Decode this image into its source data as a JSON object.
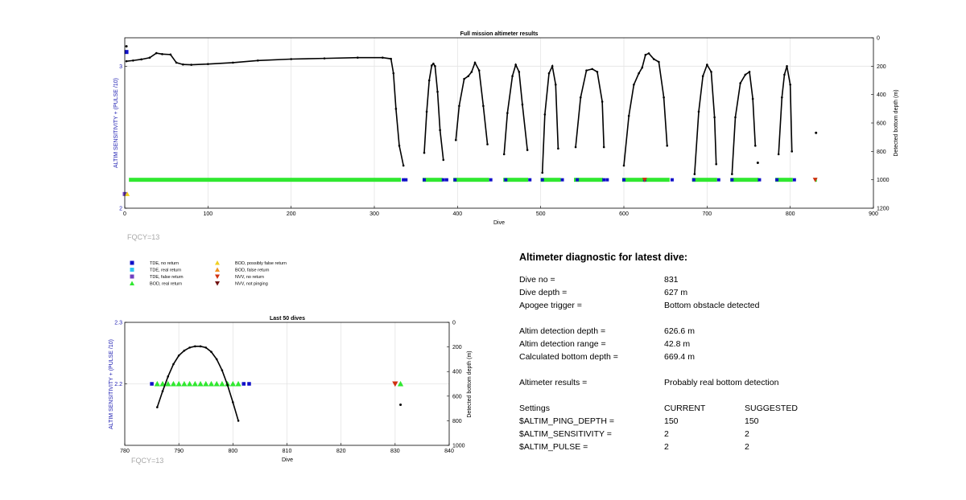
{
  "chart_data": [
    {
      "type": "scatter",
      "title": "Full mission altimeter results",
      "xlabel": "Dive",
      "ylabel_left": "ALTIM SENSITIVITY + (PULSE /10)",
      "ylabel_right": "Detected bottom depth (m)",
      "xlim": [
        0,
        900
      ],
      "ylim_left": [
        2,
        3.2
      ],
      "ylim_right": [
        1200,
        0
      ],
      "xticks": [
        0,
        100,
        200,
        300,
        400,
        500,
        600,
        700,
        800,
        900
      ],
      "yticks_left": [
        2,
        3
      ],
      "yticks_right": [
        0,
        200,
        400,
        600,
        800,
        1000,
        1200
      ],
      "grid": true,
      "annotation": "FQCY=13",
      "bottom_depth_segments": [
        {
          "x": [
            2,
            10,
            20,
            30,
            38,
            45,
            55,
            62,
            70,
            80,
            100,
            130,
            160,
            200,
            240,
            280,
            310,
            320,
            323,
            326,
            330,
            335
          ],
          "y": [
            165,
            160,
            152,
            140,
            108,
            115,
            118,
            175,
            188,
            190,
            185,
            175,
            160,
            150,
            145,
            140,
            140,
            148,
            250,
            500,
            760,
            900
          ]
        },
        {
          "x": [
            360,
            363,
            366,
            369,
            371,
            373,
            376,
            379,
            383
          ],
          "y": [
            810,
            520,
            300,
            195,
            182,
            200,
            380,
            650,
            860
          ]
        },
        {
          "x": [
            398,
            402,
            408,
            413,
            417,
            421,
            426,
            431,
            436
          ],
          "y": [
            720,
            480,
            290,
            270,
            240,
            175,
            230,
            480,
            750
          ]
        },
        {
          "x": [
            456,
            460,
            466,
            470,
            474,
            478,
            484
          ],
          "y": [
            820,
            530,
            270,
            190,
            240,
            470,
            790
          ]
        },
        {
          "x": [
            502,
            505,
            510,
            514,
            518,
            521
          ],
          "y": [
            950,
            540,
            250,
            200,
            330,
            780
          ]
        },
        {
          "x": [
            542,
            548,
            555,
            562,
            568,
            574,
            576
          ],
          "y": [
            770,
            420,
            230,
            220,
            240,
            450,
            770
          ]
        },
        {
          "x": [
            600,
            606,
            612,
            618,
            622,
            626,
            630,
            636,
            642,
            648,
            652
          ],
          "y": [
            900,
            550,
            330,
            250,
            210,
            120,
            110,
            150,
            170,
            420,
            760
          ]
        },
        {
          "x": [
            685,
            690,
            695,
            700,
            705,
            709,
            711
          ],
          "y": [
            960,
            520,
            270,
            190,
            240,
            560,
            890
          ]
        },
        {
          "x": [
            730,
            734,
            740,
            746,
            751,
            755,
            758
          ],
          "y": [
            960,
            560,
            320,
            260,
            240,
            430,
            760
          ]
        },
        {
          "x": [
            786,
            790,
            793,
            796,
            800,
            802
          ],
          "y": [
            820,
            420,
            260,
            200,
            330,
            800
          ]
        }
      ],
      "bottom_depth_isolated": [
        {
          "x": 2,
          "y": 60
        },
        {
          "x": 761,
          "y": 880
        },
        {
          "x": 831,
          "y": 669
        }
      ],
      "status_segments": [
        {
          "label": "BOD, real return",
          "x_range": [
            5,
            332
          ]
        },
        {
          "label": "BOD, real return",
          "x_range": [
            358,
            382
          ]
        },
        {
          "label": "BOD, real return",
          "x_range": [
            395,
            438
          ]
        },
        {
          "label": "BOD, real return",
          "x_range": [
            455,
            485
          ]
        },
        {
          "label": "BOD, real return",
          "x_range": [
            500,
            524
          ]
        },
        {
          "label": "BOD, real return",
          "x_range": [
            540,
            575
          ]
        },
        {
          "label": "BOD, real return",
          "x_range": [
            598,
            655
          ]
        },
        {
          "label": "BOD, real return",
          "x_range": [
            682,
            712
          ]
        },
        {
          "label": "BOD, real return",
          "x_range": [
            728,
            762
          ]
        },
        {
          "label": "BOD, real return",
          "x_range": [
            782,
            803
          ]
        },
        {
          "label": "BOD, real return",
          "x_range": [
            830,
            832
          ]
        }
      ],
      "status_value": 2.2,
      "status_no_return_dives": [
        335,
        338,
        360,
        383,
        387,
        397,
        440,
        458,
        487,
        502,
        526,
        544,
        576,
        580,
        600,
        625,
        658,
        684,
        714,
        730,
        763,
        784,
        805
      ],
      "status_other": [
        {
          "label": "TDE, no return",
          "x": 2,
          "value": 3.1
        },
        {
          "label": "TDE, false return",
          "x": 0,
          "value": 2.1
        },
        {
          "label": "BOD, possibly false return",
          "x": 3,
          "value": 2.1
        },
        {
          "label": "NVV, no return",
          "x": 625,
          "value": 2.2
        },
        {
          "label": "NVV, no return",
          "x": 830,
          "value": 2.2
        }
      ]
    },
    {
      "type": "scatter",
      "title": "Last 50 dives",
      "xlabel": "Dive",
      "ylabel_left": "ALTIM SENSITIVITY + (PULSE /10)",
      "ylabel_right": "Detected bottom depth (m)",
      "xlim": [
        780,
        840
      ],
      "ylim_left": [
        2.1,
        2.3
      ],
      "ylim_right": [
        1000,
        0
      ],
      "xticks": [
        780,
        790,
        800,
        810,
        820,
        830,
        840
      ],
      "yticks_left": [
        2.2,
        2.3
      ],
      "yticks_right": [
        0,
        200,
        400,
        600,
        800,
        1000
      ],
      "grid": true,
      "annotation": "FQCY=13",
      "bottom_depth_curve": {
        "x": [
          786,
          787,
          788,
          789,
          790,
          791,
          792,
          793,
          794,
          795,
          796,
          797,
          798,
          799,
          800,
          801
        ],
        "y": [
          690,
          560,
          440,
          340,
          270,
          230,
          205,
          195,
          195,
          205,
          240,
          300,
          390,
          510,
          650,
          800
        ]
      },
      "bottom_depth_isolated": [
        {
          "x": 831,
          "y": 670
        }
      ],
      "bod_real_return_dives": [
        786,
        787,
        788,
        789,
        790,
        791,
        792,
        793,
        794,
        795,
        796,
        797,
        798,
        799,
        800,
        801,
        831
      ],
      "tde_no_return_dives": [
        785,
        802,
        803
      ],
      "nvv_no_return_dives": [
        830
      ],
      "status_value": 2.2
    }
  ],
  "legend": [
    {
      "label": "TDE, no return",
      "marker": "square",
      "color": "#1010c8"
    },
    {
      "label": "TDE, real return",
      "marker": "square",
      "color": "#30c8f0"
    },
    {
      "label": "TDE, false return",
      "marker": "square",
      "color": "#7040c0"
    },
    {
      "label": "BOD, real return",
      "marker": "triangle-up",
      "color": "#30e830"
    },
    {
      "label": "BOD, possibly false return",
      "marker": "triangle-up",
      "color": "#f0d020"
    },
    {
      "label": "BOD, false return",
      "marker": "triangle-up",
      "color": "#f09020"
    },
    {
      "label": "NVV, no return",
      "marker": "triangle-down",
      "color": "#d03010"
    },
    {
      "label": "NVV, not pinging",
      "marker": "triangle-down",
      "color": "#701010"
    }
  ],
  "diagnostic": {
    "title": "Altimeter diagnostic for latest dive:",
    "dive_no_label": "Dive no =",
    "dive_no": "831",
    "dive_depth_label": "Dive depth =",
    "dive_depth": "627 m",
    "apogee_label": "Apogee trigger =",
    "apogee": "Bottom obstacle detected",
    "det_depth_label": "Altim detection depth =",
    "det_depth": "626.6 m",
    "det_range_label": "Altim detection range =",
    "det_range": "42.8 m",
    "calc_bottom_label": "Calculated bottom depth =",
    "calc_bottom": "669.4 m",
    "results_label": "Altimeter results =",
    "results": "Probably real bottom detection",
    "settings_label": "Settings",
    "current_label": "CURRENT",
    "suggested_label": "SUGGESTED",
    "settings": [
      {
        "name": "$ALTIM_PING_DEPTH =",
        "current": "150",
        "suggested": "150"
      },
      {
        "name": "$ALTIM_SENSITIVITY =",
        "current": "2",
        "suggested": "2"
      },
      {
        "name": "$ALTIM_PULSE =",
        "current": "2",
        "suggested": "2"
      }
    ]
  },
  "colors": {
    "depth_line": "#000000",
    "grid": "#e4e4e4",
    "left_axis_label": "#1a1ab0"
  }
}
